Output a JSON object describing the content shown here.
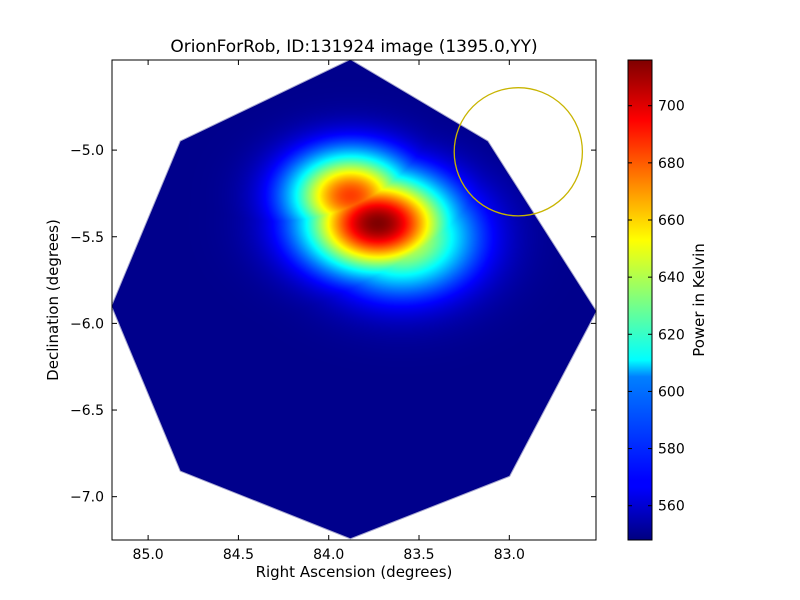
{
  "chart_data": {
    "type": "heatmap",
    "title": "OrionForRob, ID:131924 image (1395.0,YY)",
    "xlabel": "Right Ascension (degrees)",
    "ylabel": "Declination (degrees)",
    "xlim": [
      85.2,
      82.52
    ],
    "ylim": [
      -7.25,
      -4.48
    ],
    "xticks": [
      85.0,
      84.5,
      84.0,
      83.5,
      83.0
    ],
    "xtick_labels": [
      "85.0",
      "84.5",
      "84.0",
      "83.5",
      "83.0"
    ],
    "yticks": [
      -5.0,
      -5.5,
      -6.0,
      -6.5,
      -7.0
    ],
    "ytick_labels": [
      "−5.0",
      "−5.5",
      "−6.0",
      "−6.5",
      "−7.0"
    ],
    "colorbar": {
      "label": "Power in Kelvin",
      "range": [
        548,
        716
      ],
      "ticks": [
        560,
        580,
        600,
        620,
        640,
        660,
        680,
        700
      ],
      "tick_labels": [
        "560",
        "580",
        "600",
        "620",
        "640",
        "660",
        "680",
        "700"
      ],
      "colormap": "jet"
    },
    "footprint_vertices": [
      [
        83.88,
        -4.48
      ],
      [
        83.12,
        -4.95
      ],
      [
        82.52,
        -5.93
      ],
      [
        83.0,
        -6.88
      ],
      [
        83.88,
        -7.24
      ],
      [
        84.82,
        -6.85
      ],
      [
        85.2,
        -5.9
      ],
      [
        84.82,
        -4.95
      ]
    ],
    "background_level": 550,
    "sources": [
      {
        "ra": 83.73,
        "dec": -5.42,
        "peak": 716,
        "sigma_ra": 0.28,
        "sigma_dec": 0.2
      },
      {
        "ra": 83.88,
        "dec": -5.26,
        "peak": 685,
        "sigma_ra": 0.24,
        "sigma_dec": 0.18
      },
      {
        "ra": 83.6,
        "dec": -5.5,
        "peak": 650,
        "sigma_ra": 0.28,
        "sigma_dec": 0.22
      }
    ],
    "circle": {
      "ra": 82.95,
      "dec": -5.01,
      "radius_deg": 0.37,
      "color": "#c8b400"
    }
  }
}
